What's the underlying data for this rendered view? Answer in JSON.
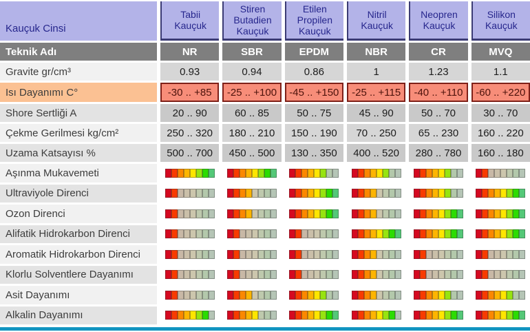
{
  "table": {
    "corner_label": "Kauçuk Cinsi",
    "columns": [
      "Tabii Kauçuk",
      "Stiren Butadien Kauçuk",
      "Etilen Propilen Kauçuk",
      "Nitril Kauçuk",
      "Neopren Kauçuk",
      "Silikon Kauçuk"
    ],
    "rows": [
      {
        "label": "Teknik Adı",
        "kind": "tech",
        "values": [
          "NR",
          "SBR",
          "EPDM",
          "NBR",
          "CR",
          "MVQ"
        ]
      },
      {
        "label": "Gravite gr/cm³",
        "kind": "value",
        "values": [
          "0.93",
          "0.94",
          "0.86",
          "1",
          "1.23",
          "1.1"
        ]
      },
      {
        "label": "Isı Dayanımı C°",
        "kind": "heat",
        "values": [
          "-30 .. +85",
          "-25 .. +100",
          "-45 .. +150",
          "-25 .. +115",
          "-40 .. +110",
          "-60 .. +220"
        ]
      },
      {
        "label": "Shore Sertliği A",
        "kind": "value",
        "values": [
          "20 .. 90",
          "60 .. 85",
          "50 .. 75",
          "45 .. 90",
          "50 .. 70",
          "30 .. 70"
        ]
      },
      {
        "label": "Çekme Gerilmesi kg/cm²",
        "kind": "value",
        "values": [
          "250 .. 320",
          "180 .. 210",
          "150 .. 190",
          "70 .. 250",
          "65 .. 230",
          "160 .. 220"
        ]
      },
      {
        "label": "Uzama Katsayısı %",
        "kind": "value",
        "values": [
          "500 .. 700",
          "450 .. 500",
          "130 .. 350",
          "400 .. 520",
          "280 .. 780",
          "160 .. 180"
        ]
      },
      {
        "label": "Aşınma Mukavemeti",
        "kind": "rating",
        "ratings": [
          8,
          8,
          6,
          6,
          6,
          2
        ]
      },
      {
        "label": "Ultraviyole Direnci",
        "kind": "rating",
        "ratings": [
          2,
          4,
          8,
          4,
          6,
          8
        ]
      },
      {
        "label": "Ozon Direnci",
        "kind": "rating",
        "ratings": [
          2,
          4,
          8,
          4,
          8,
          8
        ]
      },
      {
        "label": "Alifatik Hidrokarbon Direnci",
        "kind": "rating",
        "ratings": [
          2,
          2,
          2,
          8,
          8,
          8
        ]
      },
      {
        "label": "Aromatik Hidrokarbon Direnci",
        "kind": "rating",
        "ratings": [
          2,
          2,
          2,
          4,
          2,
          2
        ]
      },
      {
        "label": "Klorlu Solventlere Dayanımı",
        "kind": "rating",
        "ratings": [
          2,
          2,
          2,
          4,
          2,
          2
        ]
      },
      {
        "label": "Asit Dayanımı",
        "kind": "rating",
        "ratings": [
          2,
          4,
          6,
          4,
          6,
          6
        ]
      },
      {
        "label": "Alkalin Dayanımı",
        "kind": "rating",
        "ratings": [
          7,
          5,
          8,
          7,
          8,
          8
        ]
      }
    ]
  },
  "rating_scale": {
    "segments": 8,
    "active_colors": [
      "#d50920",
      "#f83b00",
      "#fb8800",
      "#fdb501",
      "#fee600",
      "#97e410",
      "#2cdc02",
      "#54c878"
    ],
    "inactive_colors": [
      "#c3a9a9",
      "#c5afa4",
      "#c8b8a6",
      "#cabfa9",
      "#ccc6ad",
      "#bec9ad",
      "#b3c8ab",
      "#b5c5b6"
    ]
  },
  "colors": {
    "header_bg": "#b3b3e8",
    "header_text": "#26268c",
    "header_border": "#3b3b74",
    "tech_row_bg": "#7f7f7f",
    "heat_label_bg": "#fbc193",
    "heat_value_bg": "#f78d79",
    "heat_border": "#7e2018",
    "bottom_bar": "#1295c1"
  },
  "chart_data": {
    "type": "table",
    "title": "Kauçuk Cinsi",
    "columns": [
      "Tabii Kauçuk (NR)",
      "Stiren Butadien Kauçuk (SBR)",
      "Etilen Propilen Kauçuk (EPDM)",
      "Nitril Kauçuk (NBR)",
      "Neopren Kauçuk (CR)",
      "Silikon Kauçuk (MVQ)"
    ],
    "property_rows": [
      {
        "label": "Gravite gr/cm³",
        "values": [
          0.93,
          0.94,
          0.86,
          1,
          1.23,
          1.1
        ]
      },
      {
        "label": "Isı Dayanımı C°",
        "values": [
          "-30 .. +85",
          "-25 .. +100",
          "-45 .. +150",
          "-25 .. +115",
          "-40 .. +110",
          "-60 .. +220"
        ]
      },
      {
        "label": "Shore Sertliği A",
        "values": [
          "20 .. 90",
          "60 .. 85",
          "50 .. 75",
          "45 .. 90",
          "50 .. 70",
          "30 .. 70"
        ]
      },
      {
        "label": "Çekme Gerilmesi kg/cm²",
        "values": [
          "250 .. 320",
          "180 .. 210",
          "150 .. 190",
          "70 .. 250",
          "65 .. 230",
          "160 .. 220"
        ]
      },
      {
        "label": "Uzama Katsayısı %",
        "values": [
          "500 .. 700",
          "450 .. 500",
          "130 .. 350",
          "400 .. 520",
          "280 .. 780",
          "160 .. 180"
        ]
      }
    ],
    "rating_rows": [
      {
        "label": "Aşınma Mukavemeti",
        "values": [
          8,
          8,
          6,
          6,
          6,
          2
        ]
      },
      {
        "label": "Ultraviyole Direnci",
        "values": [
          2,
          4,
          8,
          4,
          6,
          8
        ]
      },
      {
        "label": "Ozon Direnci",
        "values": [
          2,
          4,
          8,
          4,
          8,
          8
        ]
      },
      {
        "label": "Alifatik Hidrokarbon Direnci",
        "values": [
          2,
          2,
          2,
          8,
          8,
          8
        ]
      },
      {
        "label": "Aromatik Hidrokarbon Direnci",
        "values": [
          2,
          2,
          2,
          4,
          2,
          2
        ]
      },
      {
        "label": "Klorlu Solventlere Dayanımı",
        "values": [
          2,
          2,
          2,
          4,
          2,
          2
        ]
      },
      {
        "label": "Asit Dayanımı",
        "values": [
          2,
          4,
          6,
          4,
          6,
          6
        ]
      },
      {
        "label": "Alkalin Dayanımı",
        "values": [
          7,
          5,
          8,
          7,
          8,
          8
        ]
      }
    ],
    "rating_scale": {
      "min": 0,
      "max": 8,
      "meaning": "number of active segments on red-to-green 8-segment bar"
    }
  }
}
